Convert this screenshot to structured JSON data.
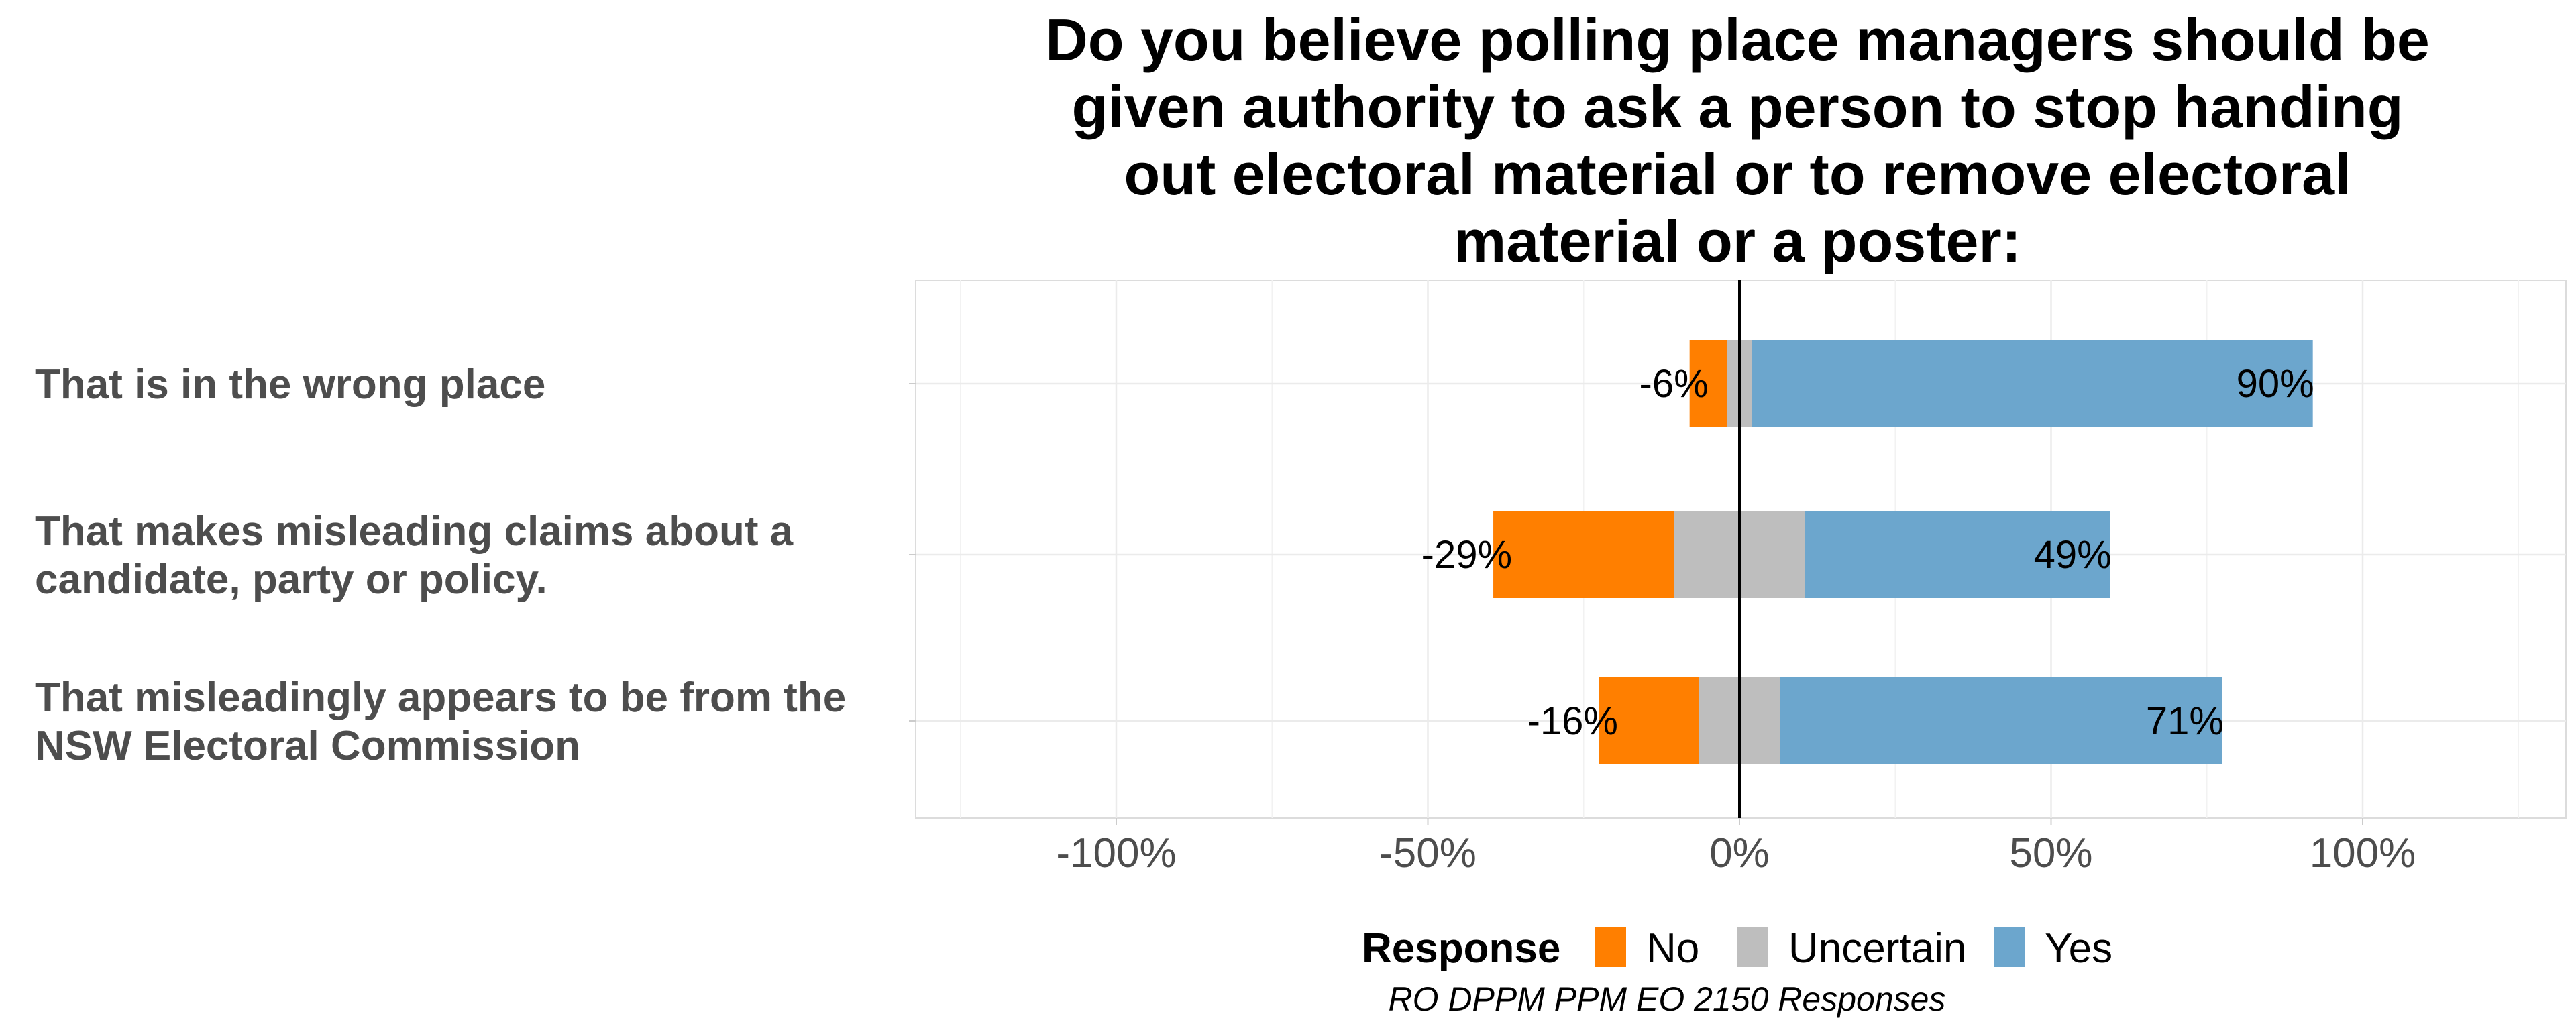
{
  "chart_data": {
    "type": "bar",
    "orientation": "horizontal",
    "stacked": "diverging",
    "title_lines": [
      "Do you believe polling place managers should be",
      "given authority to ask a person to stop handing",
      "out electoral material or to remove electoral",
      "material or a poster:"
    ],
    "categories": [
      "That is in the wrong place",
      "That makes misleading claims about a candidate, party or policy.",
      "That misleadingly appears to be from the NSW Electoral Commission"
    ],
    "category_lines": [
      [
        "That is in the wrong place"
      ],
      [
        "That makes misleading claims about a",
        "candidate, party or policy."
      ],
      [
        "That misleadingly appears to be from the",
        "NSW Electoral Commission"
      ]
    ],
    "series": [
      {
        "name": "No",
        "color": "#ff7f00",
        "values": [
          6,
          29,
          16
        ]
      },
      {
        "name": "Uncertain",
        "color": "#bebebe",
        "values": [
          4,
          21,
          13
        ]
      },
      {
        "name": "Yes",
        "color": "#6ca6cd",
        "values": [
          90,
          49,
          71
        ]
      }
    ],
    "data_labels": {
      "left": [
        "-6%",
        "-29%",
        "-16%"
      ],
      "right": [
        "90%",
        "49%",
        "71%"
      ]
    },
    "xlim": [
      -130,
      130
    ],
    "xticks": [
      -100,
      -50,
      0,
      50,
      100
    ],
    "xtick_labels": [
      "-100%",
      "-50%",
      "0%",
      "50%",
      "100%"
    ],
    "xlabel": "",
    "ylabel": "",
    "grid": true,
    "legend": {
      "title": "Response",
      "items": [
        "No",
        "Uncertain",
        "Yes"
      ],
      "position": "bottom"
    },
    "caption": "RO DPPM PPM EO 2150 Responses"
  }
}
